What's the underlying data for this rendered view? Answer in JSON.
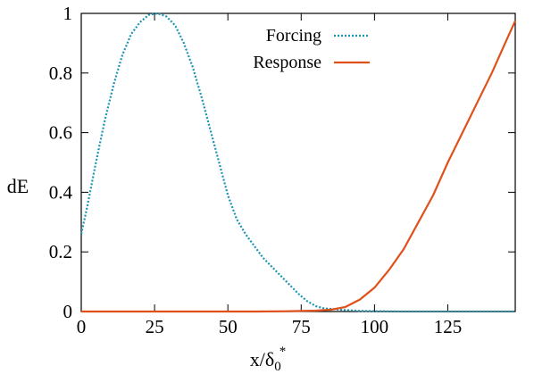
{
  "chart_data": {
    "type": "line",
    "title": "",
    "xlabel": "x/δ",
    "xlabel_sub": "0",
    "xlabel_sup": "*",
    "ylabel": "dE",
    "xlim": [
      0,
      148
    ],
    "ylim": [
      0,
      1
    ],
    "xticks": [
      0,
      25,
      50,
      75,
      100,
      125
    ],
    "xtick_labels": [
      "0",
      "25",
      "50",
      "75",
      "100",
      "125"
    ],
    "yticks": [
      0,
      0.2,
      0.4,
      0.6,
      0.8,
      1
    ],
    "ytick_labels": [
      "0",
      "0.2",
      "0.4",
      "0.6",
      "0.8",
      "1"
    ],
    "grid": false,
    "legend_position": "top-center",
    "series": [
      {
        "name": "Forcing",
        "color": "#1a93b5",
        "style": "dotted",
        "points": [
          [
            0,
            0.26
          ],
          [
            2,
            0.35
          ],
          [
            5,
            0.5
          ],
          [
            8,
            0.64
          ],
          [
            11,
            0.76
          ],
          [
            14,
            0.86
          ],
          [
            17,
            0.93
          ],
          [
            20,
            0.97
          ],
          [
            23,
            0.995
          ],
          [
            26,
            1.0
          ],
          [
            29,
            0.99
          ],
          [
            32,
            0.96
          ],
          [
            35,
            0.9
          ],
          [
            38,
            0.82
          ],
          [
            41,
            0.72
          ],
          [
            44,
            0.61
          ],
          [
            47,
            0.5
          ],
          [
            50,
            0.39
          ],
          [
            53,
            0.31
          ],
          [
            56,
            0.26
          ],
          [
            59,
            0.22
          ],
          [
            62,
            0.18
          ],
          [
            65,
            0.15
          ],
          [
            68,
            0.12
          ],
          [
            71,
            0.09
          ],
          [
            74,
            0.06
          ],
          [
            77,
            0.035
          ],
          [
            80,
            0.018
          ],
          [
            83,
            0.01
          ],
          [
            86,
            0.008
          ],
          [
            90,
            0.005
          ],
          [
            95,
            0.002
          ],
          [
            100,
            0.001
          ],
          [
            110,
            0.0
          ],
          [
            125,
            0.0
          ],
          [
            148,
            0.0
          ]
        ]
      },
      {
        "name": "Response",
        "color": "#e0501b",
        "style": "solid",
        "points": [
          [
            0,
            0.0
          ],
          [
            20,
            0.0
          ],
          [
            40,
            0.0
          ],
          [
            60,
            0.0
          ],
          [
            70,
            0.001
          ],
          [
            80,
            0.003
          ],
          [
            85,
            0.006
          ],
          [
            90,
            0.015
          ],
          [
            95,
            0.04
          ],
          [
            100,
            0.08
          ],
          [
            105,
            0.14
          ],
          [
            110,
            0.21
          ],
          [
            115,
            0.3
          ],
          [
            120,
            0.39
          ],
          [
            125,
            0.5
          ],
          [
            130,
            0.6
          ],
          [
            135,
            0.7
          ],
          [
            140,
            0.8
          ],
          [
            145,
            0.91
          ],
          [
            148,
            0.975
          ]
        ]
      }
    ]
  }
}
